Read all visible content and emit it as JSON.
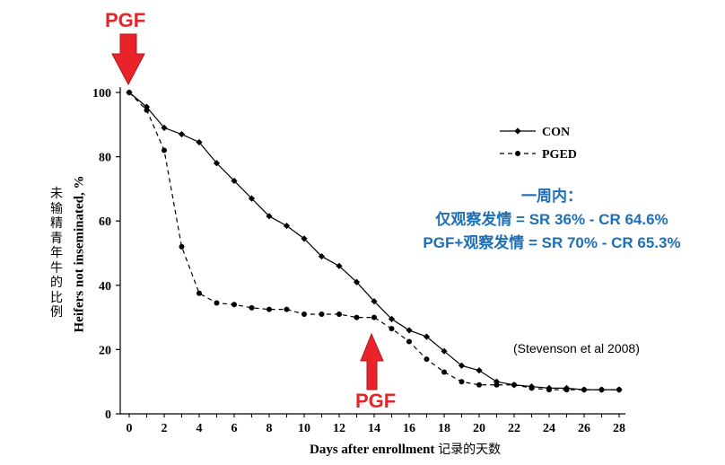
{
  "chart_data": {
    "type": "line",
    "xlabel": "Days after enrollment",
    "xlabel_cn": "记录的天数",
    "ylabel": "Heifers not inseminated, %",
    "ylabel_cn": "未输精青年牛的比例",
    "xlim": [
      0,
      28
    ],
    "ylim": [
      0,
      100
    ],
    "x_ticks": [
      0,
      2,
      4,
      6,
      8,
      10,
      12,
      14,
      16,
      18,
      20,
      22,
      24,
      26,
      28
    ],
    "y_ticks": [
      0,
      20,
      40,
      60,
      80,
      100
    ],
    "legend_position": "top-right",
    "series": [
      {
        "name": "CON",
        "style": "solid",
        "marker": "diamond",
        "x": [
          0,
          1,
          2,
          3,
          4,
          5,
          6,
          7,
          8,
          9,
          10,
          11,
          12,
          13,
          14,
          15,
          16,
          17,
          18,
          19,
          20,
          21,
          22,
          23,
          24,
          25,
          26,
          27,
          28
        ],
        "values": [
          100,
          95.5,
          89,
          87,
          84.5,
          78,
          72.5,
          67,
          61.5,
          58.5,
          54.5,
          49,
          46,
          41,
          35,
          29.5,
          26,
          24,
          19.5,
          15,
          13.5,
          10,
          9,
          8.5,
          8,
          8,
          7.5,
          7.5,
          7.5
        ]
      },
      {
        "name": "PGED",
        "style": "dashed",
        "marker": "circle",
        "x": [
          0,
          1,
          2,
          3,
          4,
          5,
          6,
          7,
          8,
          9,
          10,
          11,
          12,
          13,
          14,
          15,
          16,
          17,
          18,
          19,
          20,
          21,
          22,
          23,
          24,
          25,
          26,
          27,
          28
        ],
        "values": [
          100,
          94.5,
          82,
          52,
          37.5,
          34.5,
          34,
          33,
          32.5,
          32.5,
          31,
          31,
          31,
          30,
          30,
          26.5,
          22.5,
          17,
          13,
          10,
          9,
          9,
          9,
          8,
          7.5,
          7.5,
          7.5,
          7.5,
          7.5
        ]
      }
    ]
  },
  "annotations": {
    "pgf_label_top": "PGF",
    "pgf_label_bottom": "PGF",
    "info_line1": "一周内：",
    "info_line2": "仅观察发情 = SR 36% - CR 64.6%",
    "info_line3": "PGF+观察发情  = SR 70% - CR 65.3%",
    "citation": "(Stevenson et al 2008)"
  },
  "colors": {
    "arrow": "#e8232a",
    "info_text": "#1f6fb5",
    "line": "#000000"
  }
}
